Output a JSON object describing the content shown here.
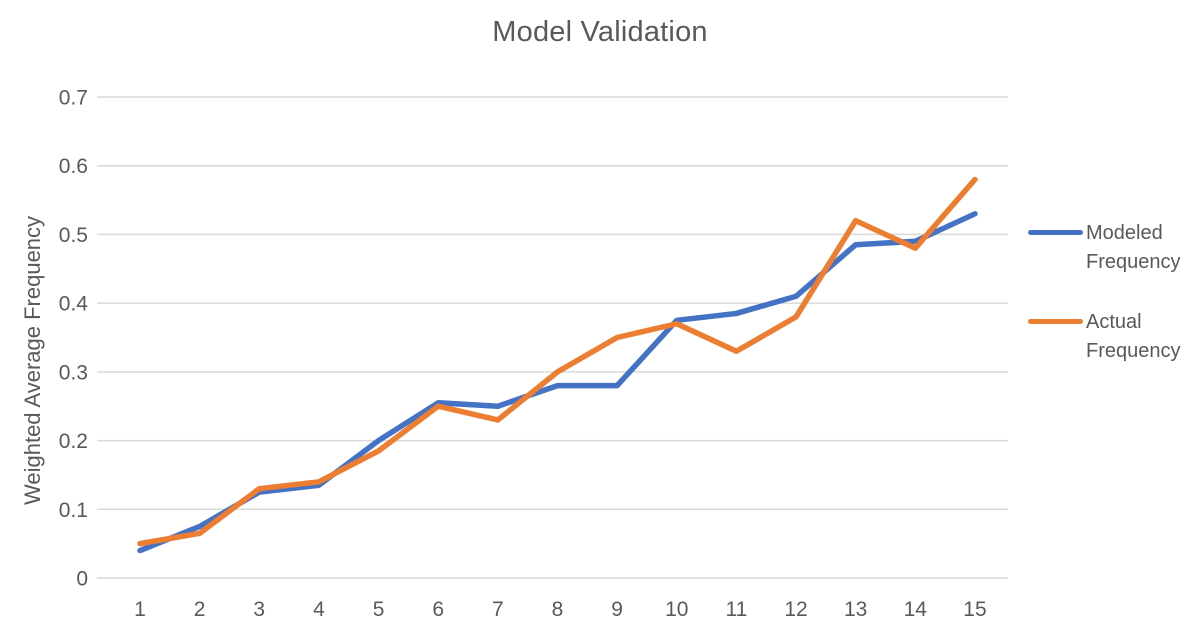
{
  "title": "Model Validation",
  "chart_data": {
    "type": "line",
    "title": "Model Validation",
    "xlabel": "",
    "ylabel": "Weighted Average Frequency",
    "x": [
      1,
      2,
      3,
      4,
      5,
      6,
      7,
      8,
      9,
      10,
      11,
      12,
      13,
      14,
      15
    ],
    "series": [
      {
        "name": "Modeled Frequency",
        "color": "#4472C4",
        "values": [
          0.04,
          0.075,
          0.125,
          0.135,
          0.2,
          0.255,
          0.25,
          0.28,
          0.28,
          0.375,
          0.385,
          0.41,
          0.485,
          0.49,
          0.53
        ]
      },
      {
        "name": "Actual Frequency",
        "color": "#ED7D31",
        "values": [
          0.05,
          0.065,
          0.13,
          0.14,
          0.185,
          0.25,
          0.23,
          0.3,
          0.35,
          0.37,
          0.33,
          0.38,
          0.52,
          0.48,
          0.58
        ]
      }
    ],
    "ylim": [
      0,
      0.7
    ],
    "yticks": [
      0.7,
      0.6,
      0.5,
      0.4,
      0.3,
      0.2,
      0.1,
      0
    ],
    "ytick_labels": [
      "0.7",
      "0.6",
      "0.5",
      "0.4",
      "0.3",
      "0.2",
      "0.1",
      "0"
    ],
    "xtick_labels": [
      "1",
      "2",
      "3",
      "4",
      "5",
      "6",
      "7",
      "8",
      "9",
      "10",
      "11",
      "12",
      "13",
      "14",
      "15"
    ],
    "grid": true,
    "legend_position": "right"
  },
  "legend": {
    "items": [
      {
        "label": "Modeled Frequency",
        "color": "#4472C4"
      },
      {
        "label": "Actual Frequency",
        "color": "#ED7D31"
      }
    ]
  },
  "colors": {
    "text": "#595959",
    "gridline": "#D9D9D9",
    "background": "#FFFFFF"
  }
}
